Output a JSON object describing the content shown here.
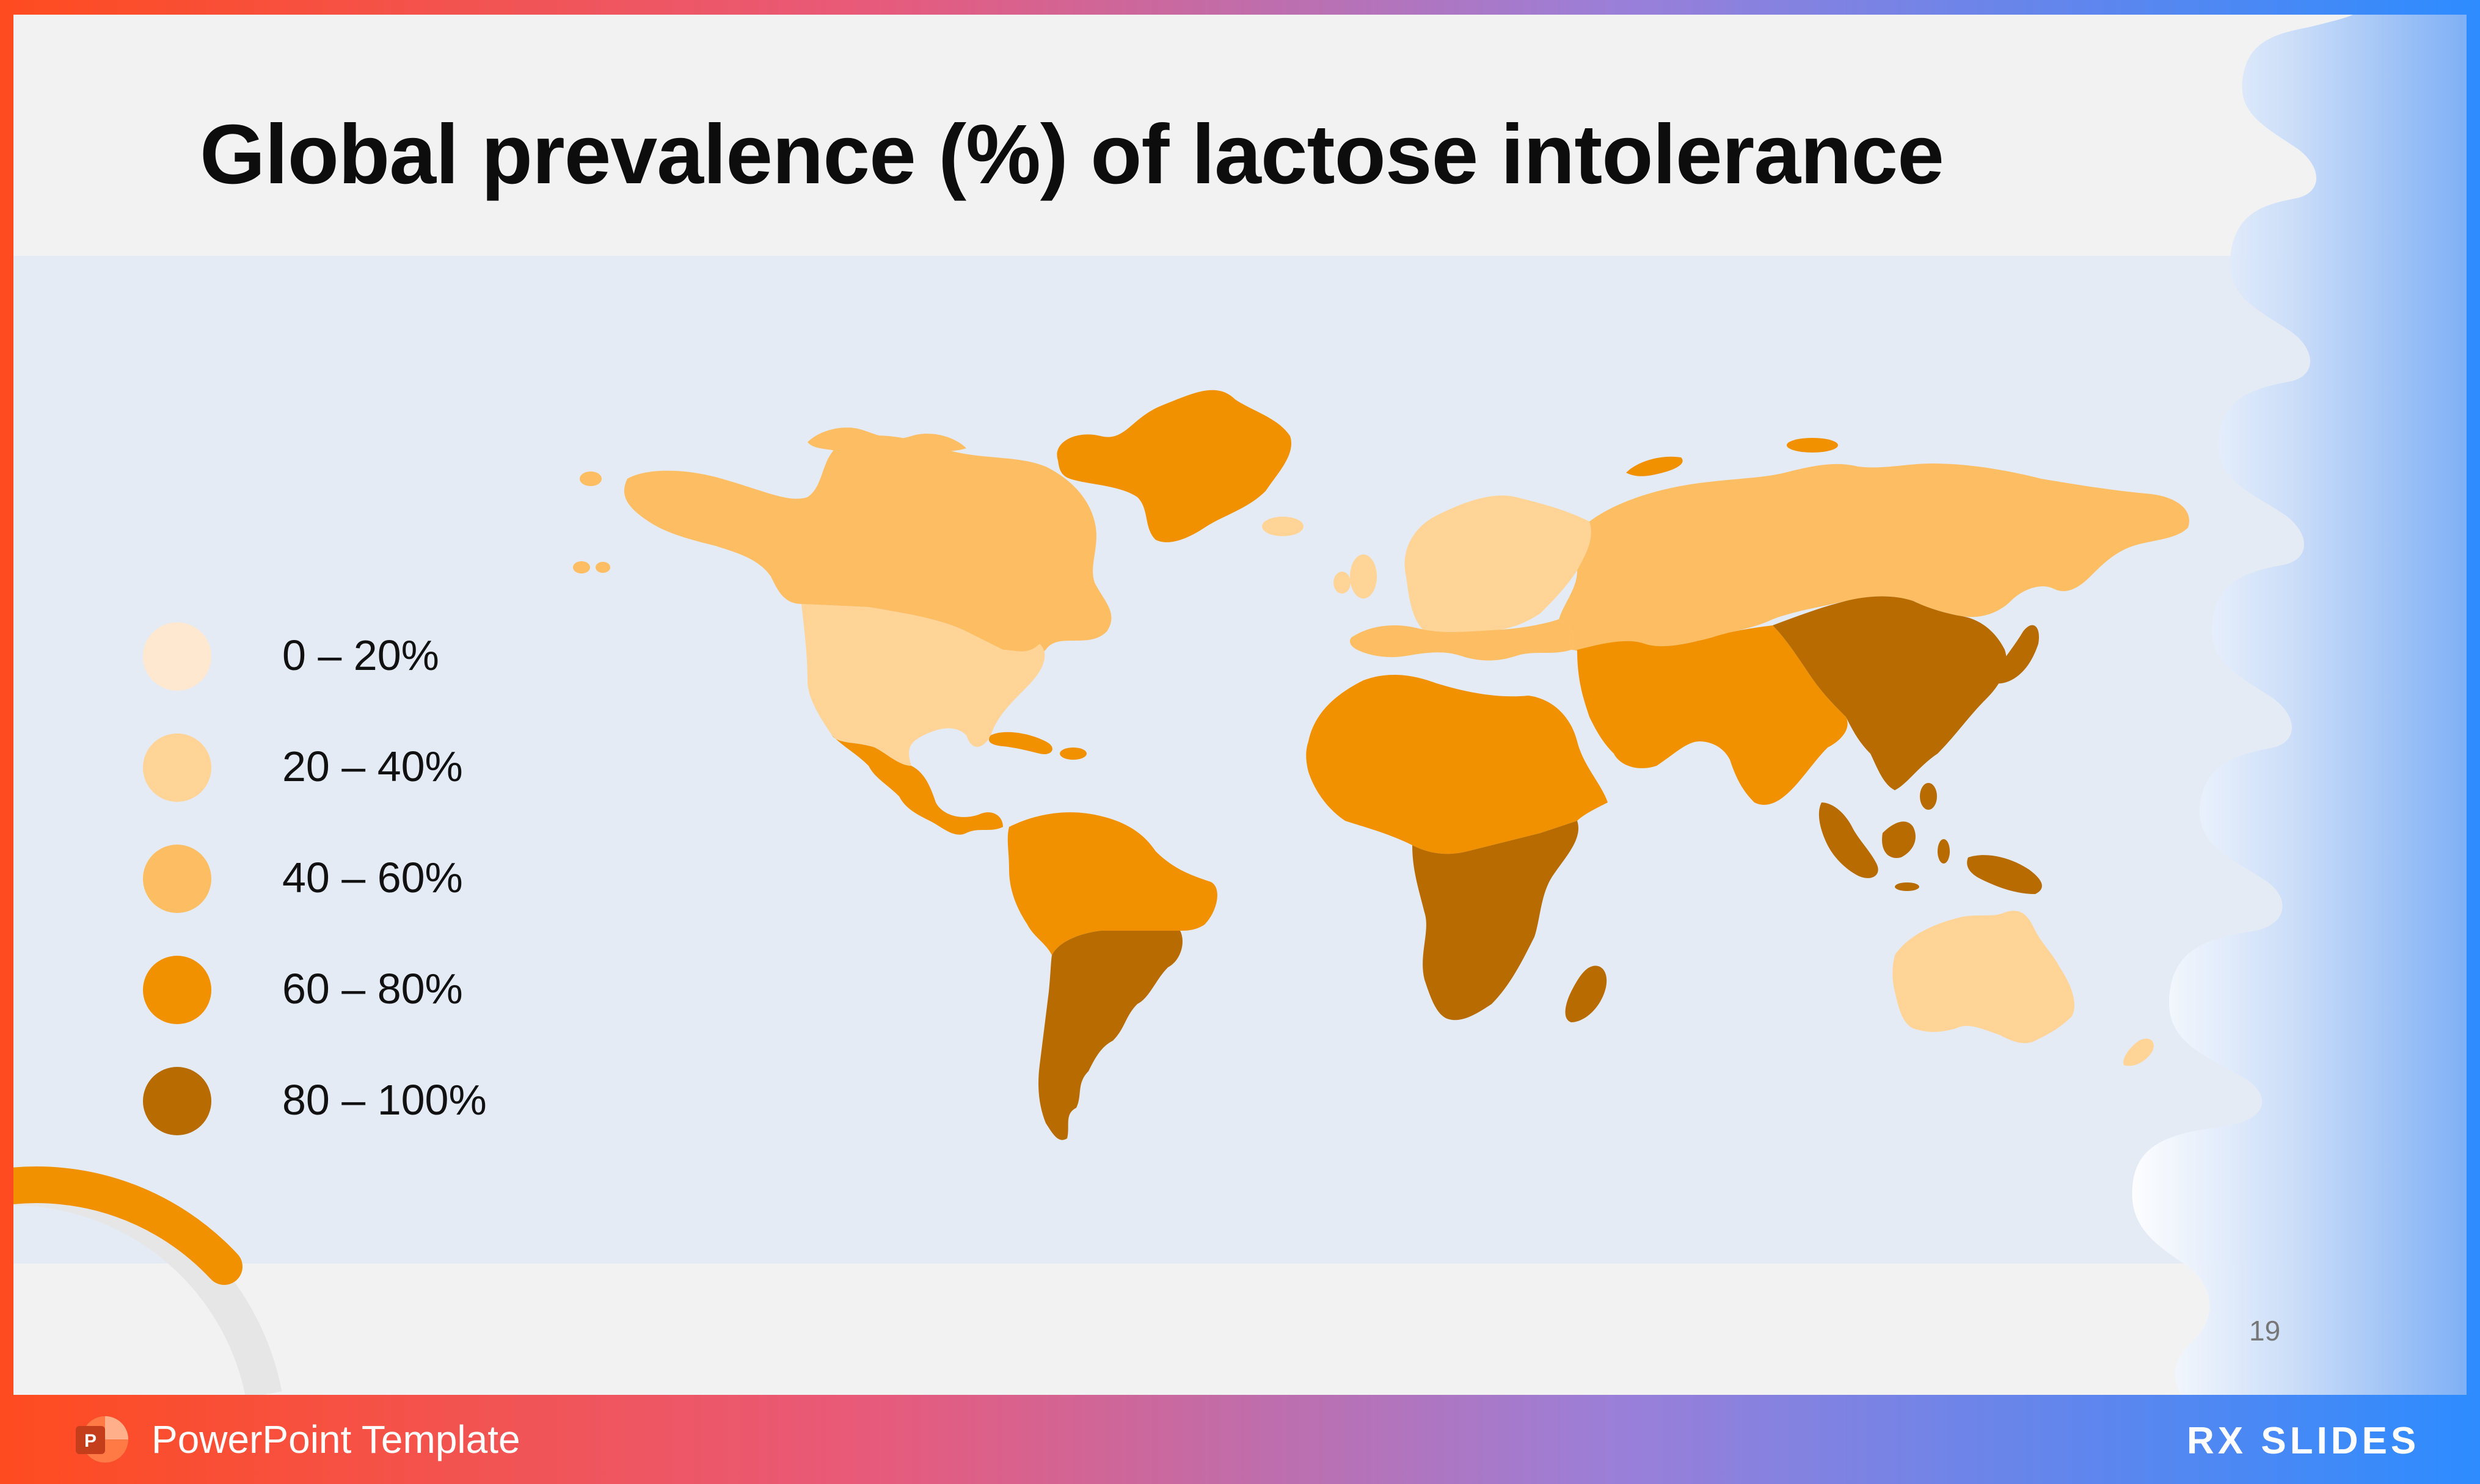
{
  "slide": {
    "title": "Global prevalence (%) of lactose intolerance",
    "page_number": "19"
  },
  "legend": {
    "items": [
      {
        "label": "0 – 20%",
        "color": "#ffe8cf"
      },
      {
        "label": "20 – 40%",
        "color": "#ffd496"
      },
      {
        "label": "40 – 60%",
        "color": "#fdbd62"
      },
      {
        "label": "60 – 80%",
        "color": "#f29100"
      },
      {
        "label": "80 – 100%",
        "color": "#b86c00"
      }
    ]
  },
  "map": {
    "regions": [
      {
        "name": "Canada and Alaska",
        "class": "40 – 60%"
      },
      {
        "name": "United States",
        "class": "20 – 40%"
      },
      {
        "name": "Greenland",
        "class": "60 – 80%"
      },
      {
        "name": "Central America and Caribbean",
        "class": "60 – 80%"
      },
      {
        "name": "Northern South America",
        "class": "60 – 80%"
      },
      {
        "name": "Southern South America",
        "class": "80 – 100%"
      },
      {
        "name": "Northern Europe",
        "class": "20 – 40%"
      },
      {
        "name": "Eastern Europe and Russia",
        "class": "40 – 60%"
      },
      {
        "name": "Northern and Central Africa",
        "class": "60 – 80%"
      },
      {
        "name": "Southern Africa",
        "class": "80 – 100%"
      },
      {
        "name": "Middle East and South Asia",
        "class": "60 – 80%"
      },
      {
        "name": "East Asia",
        "class": "80 – 100%"
      },
      {
        "name": "Southeast Asia",
        "class": "80 – 100%"
      },
      {
        "name": "Australia and New Zealand",
        "class": "20 – 40%"
      }
    ]
  },
  "footer": {
    "label": "PowerPoint Template",
    "brand": "RX SLIDES"
  },
  "colors": {
    "band": "#e4ebf5",
    "background": "#f2f2f2",
    "frame_gradient": [
      "#ff4b1f",
      "#e85a7a",
      "#9b7fd8",
      "#2d8cff"
    ]
  }
}
